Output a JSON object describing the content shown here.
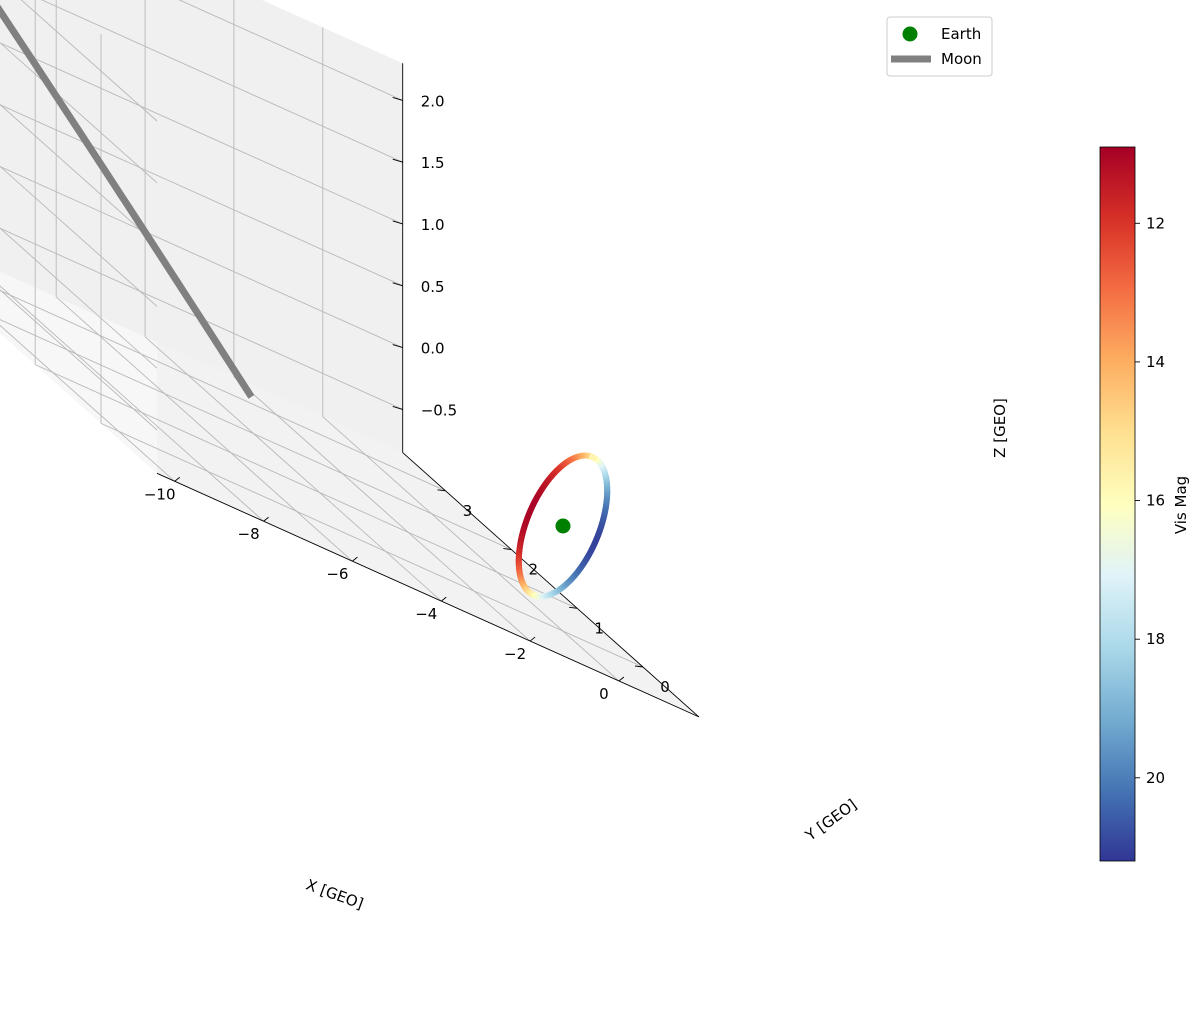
{
  "chart_data": {
    "type": "3d-line",
    "x_axis": {
      "label": "X [GEO]",
      "ticks": [
        -10,
        -8,
        -6,
        -4,
        -2,
        0
      ],
      "range": [
        -10.4,
        1.8
      ]
    },
    "y_axis": {
      "label": "Y [GEO]",
      "ticks": [
        0,
        1,
        2,
        3
      ],
      "range": [
        -0.85,
        3.65
      ]
    },
    "z_axis": {
      "label": "Z [GEO]",
      "ticks": [
        -0.5,
        0.0,
        0.5,
        1.0,
        1.5,
        2.0
      ],
      "tick_labels": [
        "−0.5",
        "0.0",
        "0.5",
        "1.0",
        "1.5",
        "2.0"
      ],
      "range": [
        -0.85,
        2.3
      ]
    },
    "grid": true,
    "legend": {
      "placement": "top-right",
      "entries": [
        "Earth",
        "Moon"
      ]
    },
    "colorbar": {
      "label": "Vis Mag",
      "ticks": [
        12,
        14,
        16,
        18,
        20
      ],
      "range": [
        10.9,
        21.2
      ],
      "inverted": true,
      "colormap": "RdYlBu"
    },
    "series": [
      {
        "name": "Earth",
        "kind": "point",
        "color": "#008000",
        "x": 0,
        "y": 0,
        "z": 0
      },
      {
        "name": "Moon",
        "kind": "line",
        "color": "#808080",
        "x": [
          -8.2,
          -9.8
        ],
        "y": [
          -0.8,
          3.6
        ],
        "z": [
          0.1,
          2.2
        ]
      },
      {
        "name": "Orbit",
        "kind": "colored-line",
        "colored_by": "Vis Mag",
        "approx_vis_mag_range": [
          11,
          21
        ]
      }
    ]
  }
}
